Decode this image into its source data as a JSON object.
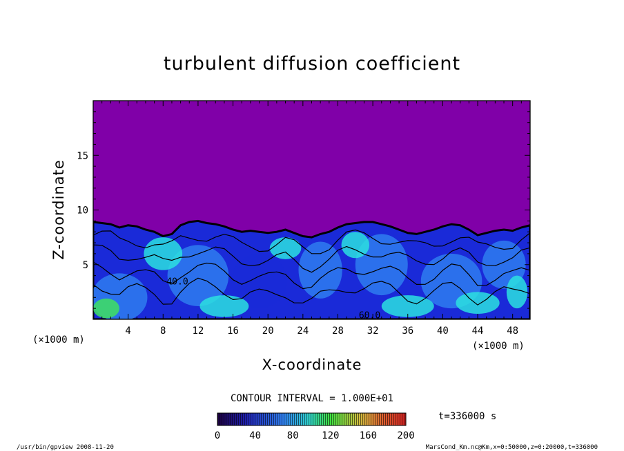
{
  "chart_data": {
    "type": "heatmap",
    "title": "turbulent diffusion coefficient",
    "xlabel": "X-coordinate",
    "ylabel": "Z-coordinate",
    "x_unit": "(×1000 m)",
    "z_unit": "(×1000 m)",
    "xlim": [
      0,
      50
    ],
    "ylim": [
      0,
      20
    ],
    "x_ticks": [
      4,
      8,
      12,
      16,
      20,
      24,
      28,
      32,
      36,
      40,
      44,
      48
    ],
    "y_ticks": [
      5,
      10,
      15
    ],
    "contour_interval": "CONTOUR INTERVAL = 1.000E+01",
    "contour_labels": [
      {
        "x": 8.4,
        "z": 3.2,
        "text": "40.0"
      },
      {
        "x": 30.4,
        "z": 0.1,
        "text": "60.0"
      }
    ],
    "colorbar": {
      "min": 0,
      "max": 200,
      "ticks": [
        0,
        40,
        80,
        120,
        160,
        200
      ]
    },
    "time_label": "t=336000 s",
    "boundary_layer_top": [
      [
        0,
        8.9
      ],
      [
        1,
        8.8
      ],
      [
        2,
        8.7
      ],
      [
        3,
        8.4
      ],
      [
        4,
        8.6
      ],
      [
        5,
        8.5
      ],
      [
        6,
        8.2
      ],
      [
        7,
        8.0
      ],
      [
        8,
        7.6
      ],
      [
        9,
        7.8
      ],
      [
        10,
        8.6
      ],
      [
        11,
        8.9
      ],
      [
        12,
        9.0
      ],
      [
        13,
        8.8
      ],
      [
        14,
        8.7
      ],
      [
        15,
        8.5
      ],
      [
        16,
        8.2
      ],
      [
        17,
        8.0
      ],
      [
        18,
        8.1
      ],
      [
        19,
        8.0
      ],
      [
        20,
        7.9
      ],
      [
        21,
        8.0
      ],
      [
        22,
        8.2
      ],
      [
        23,
        7.9
      ],
      [
        24,
        7.6
      ],
      [
        25,
        7.5
      ],
      [
        26,
        7.8
      ],
      [
        27,
        8.0
      ],
      [
        28,
        8.4
      ],
      [
        29,
        8.7
      ],
      [
        30,
        8.8
      ],
      [
        31,
        8.9
      ],
      [
        32,
        8.9
      ],
      [
        33,
        8.7
      ],
      [
        34,
        8.5
      ],
      [
        35,
        8.2
      ],
      [
        36,
        7.9
      ],
      [
        37,
        7.8
      ],
      [
        38,
        8.0
      ],
      [
        39,
        8.2
      ],
      [
        40,
        8.5
      ],
      [
        41,
        8.7
      ],
      [
        42,
        8.6
      ],
      [
        43,
        8.2
      ],
      [
        44,
        7.7
      ],
      [
        45,
        7.9
      ],
      [
        46,
        8.1
      ],
      [
        47,
        8.2
      ],
      [
        48,
        8.1
      ],
      [
        49,
        8.4
      ],
      [
        50,
        8.6
      ]
    ]
  },
  "footer": {
    "program": "/usr/bin/gpview   2008-11-20",
    "source": "MarsCond_Km.nc@Km,x=0:50000,z=0:20000,t=336000"
  },
  "colors": {
    "background_region": "#8000a8",
    "low": "#1a2ad8",
    "mid": "#2f7cf0",
    "high": "#2ce0e0",
    "peak": "#40e060"
  }
}
